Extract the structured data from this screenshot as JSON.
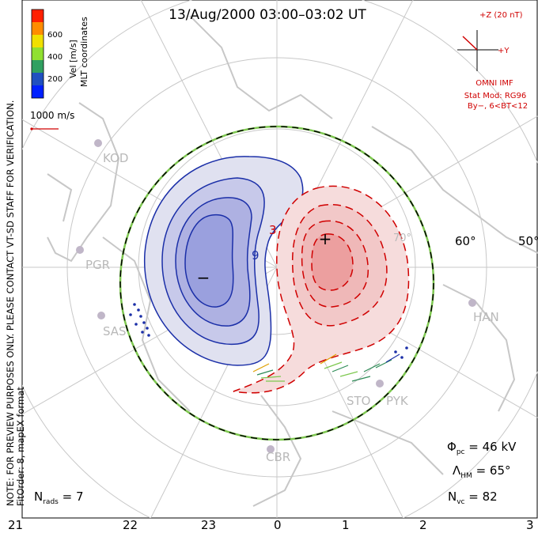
{
  "title": "13/Aug/2000 03:00–03:02 UT",
  "colorbar": {
    "unit_label": "Vel [m/s]",
    "coord_label": "MLT coordinates",
    "ticks": [
      "600",
      "400",
      "200"
    ],
    "colors": [
      "#ff2000",
      "#ff8c00",
      "#f0e000",
      "#90e030",
      "#30a060",
      "#2050c0",
      "#0020ff"
    ]
  },
  "scale_vector_label": "1000 m/s",
  "imf": {
    "z_label": "+Z (20 nT)",
    "y_label": "+Y",
    "source": "OMNI IMF",
    "model": "Stat Mod: RG96",
    "condition": "By−, 6<BT<12",
    "color": "#d00000"
  },
  "disclaimer": {
    "line1": "NOTE: FOR PREVIEW PURPOSES ONLY. PLEASE CONTACT VT-SD STAFF FOR VERIFICATION.",
    "line2": "FitOrder: 8, mapEX format"
  },
  "stations": [
    "KOD",
    "PGR",
    "SAS",
    "HAN",
    "STO",
    "PYK",
    "CBR"
  ],
  "lat_labels": [
    "60°",
    "50°",
    "70°"
  ],
  "contour_labels": [
    "9",
    "3"
  ],
  "polarity": {
    "negative": "−",
    "positive": "+"
  },
  "stats": {
    "phi_pc": "Φpc = 46 kV",
    "phi_pc_symbol": "Φ",
    "phi_pc_sub": "pc",
    "phi_pc_value": " = 46 kV",
    "lambda_hm_symbol": "Λ",
    "lambda_hm_sub": "HM",
    "lambda_hm_value": " = 65°",
    "n_vc_symbol": "N",
    "n_vc_sub": "vc",
    "n_vc_value": " = 82",
    "n_rads_symbol": "N",
    "n_rads_sub": "rads",
    "n_rads_value": " = 7"
  },
  "mlt_axis": [
    "21",
    "22",
    "23",
    "0",
    "1",
    "2",
    "3"
  ],
  "accent": {
    "negative": "#1b2fa8",
    "positive": "#cc1a1a",
    "boundary": "#7ec850"
  }
}
